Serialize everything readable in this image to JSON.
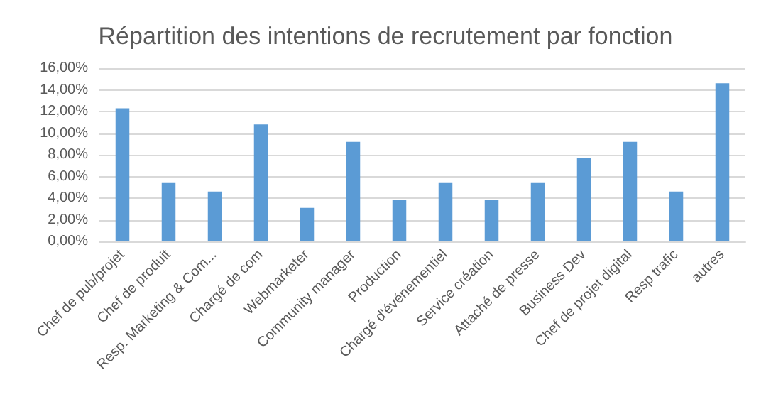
{
  "chart_data": {
    "type": "bar",
    "title": "Répartition des intentions de recrutement par fonction",
    "categories": [
      "Chef de pub/projet",
      "Chef de produit",
      "Resp. Marketing & Com...",
      "Chargé de com",
      "Webmarketer",
      "Community manager",
      "Production",
      "Chargé d'événementiel",
      "Service création",
      "Attaché de presse",
      "Business Dev",
      "Chef de projet digital",
      "Resp trafic",
      "autres"
    ],
    "values": [
      12.3,
      5.4,
      4.6,
      10.8,
      3.1,
      9.2,
      3.8,
      5.4,
      3.8,
      5.4,
      7.7,
      9.2,
      4.6,
      14.6
    ],
    "color": "#5b9bd5",
    "ylim": [
      0,
      16
    ],
    "yticks": [
      {
        "value": 0,
        "label": "0,00%"
      },
      {
        "value": 2,
        "label": "2,00%"
      },
      {
        "value": 4,
        "label": "4,00%"
      },
      {
        "value": 6,
        "label": "6,00%"
      },
      {
        "value": 8,
        "label": "8,00%"
      },
      {
        "value": 10,
        "label": "10,00%"
      },
      {
        "value": 12,
        "label": "12,00%"
      },
      {
        "value": 14,
        "label": "14,00%"
      },
      {
        "value": 16,
        "label": "16,00%"
      }
    ],
    "grid": "y"
  }
}
